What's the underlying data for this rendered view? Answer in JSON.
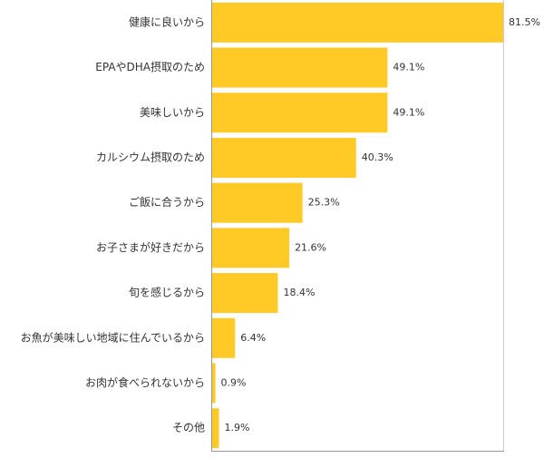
{
  "chart_data": {
    "type": "barh",
    "categories": [
      "健康に良いから",
      "EPAやDHA摂取のため",
      "美味しいから",
      "カルシウム摂取のため",
      "ご飯に合うから",
      "お子さまが好きだから",
      "旬を感じるから",
      "お魚が美味しい地域に住んでいるから",
      "お肉が食べられないから",
      "その他"
    ],
    "values": [
      81.5,
      49.1,
      49.1,
      40.3,
      25.3,
      21.6,
      18.4,
      6.4,
      0.9,
      1.9
    ],
    "value_labels": [
      "81.5%",
      "49.1%",
      "49.1%",
      "40.3%",
      "25.3%",
      "21.6%",
      "18.4%",
      "6.4%",
      "0.9%",
      "1.9%"
    ],
    "color": "#ffc926"
  }
}
